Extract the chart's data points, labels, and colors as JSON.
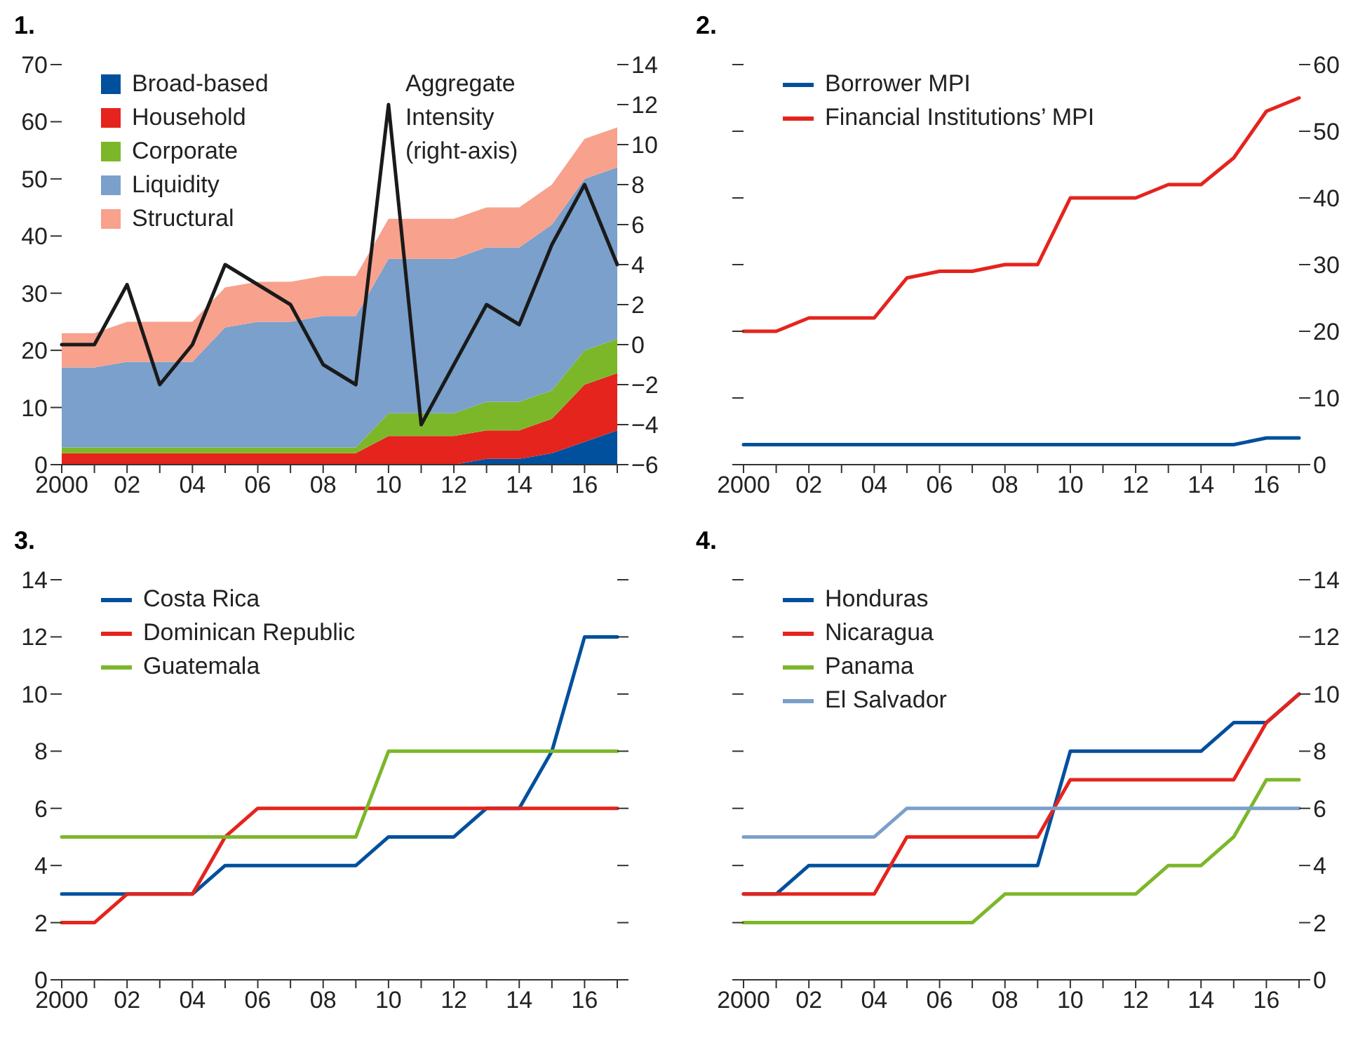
{
  "chart_data": [
    {
      "type": "area",
      "title": "1.",
      "stacked": true,
      "legend": "top left",
      "line_style": "solid",
      "categories": [
        "2000",
        null,
        "02",
        null,
        "04",
        null,
        "06",
        null,
        "08",
        null,
        "10",
        null,
        "12",
        null,
        "14",
        null,
        "16",
        null
      ],
      "series": [
        {
          "name": "Broad-based",
          "color": "#00509d",
          "values": [
            0,
            0,
            0,
            0,
            0,
            0,
            0,
            0,
            0,
            0,
            0,
            0,
            0,
            1,
            1,
            2,
            4,
            6
          ]
        },
        {
          "name": "Household",
          "color": "#e4241d",
          "values": [
            2,
            2,
            2,
            2,
            2,
            2,
            2,
            2,
            2,
            2,
            5,
            5,
            5,
            5,
            5,
            6,
            10,
            10
          ]
        },
        {
          "name": "Corporate",
          "color": "#7cb72a",
          "values": [
            1,
            1,
            1,
            1,
            1,
            1,
            1,
            1,
            1,
            1,
            4,
            4,
            4,
            5,
            5,
            5,
            6,
            6
          ]
        },
        {
          "name": "Liquidity",
          "color": "#7aa0cb",
          "values": [
            14,
            14,
            15,
            15,
            15,
            21,
            22,
            22,
            23,
            23,
            27,
            27,
            27,
            27,
            27,
            29,
            30,
            30
          ]
        },
        {
          "name": "Structural",
          "color": "#f8a18c",
          "values": [
            6,
            6,
            7,
            7,
            7,
            7,
            7,
            7,
            7,
            7,
            7,
            7,
            7,
            7,
            7,
            7,
            7,
            7
          ]
        },
        {
          "name": "Aggregate Intensity (right-axis)",
          "type": "line",
          "axis": "y2",
          "color": "#1a1a1a",
          "values": [
            0,
            0,
            3,
            -2,
            0,
            4,
            3,
            2,
            -1,
            -2,
            12,
            -4,
            -1,
            2,
            1,
            5,
            8,
            4
          ]
        }
      ],
      "ylim": [
        0,
        70
      ],
      "yticks": [
        0,
        10,
        20,
        30,
        40,
        50,
        60,
        70
      ],
      "y2lim": [
        -6,
        14
      ],
      "y2ticks": [
        -6,
        -4,
        -2,
        0,
        2,
        4,
        6,
        8,
        10,
        12,
        14
      ]
    },
    {
      "type": "line",
      "title": "2.",
      "legend": "top left",
      "line_style": "solid",
      "categories": [
        "2000",
        null,
        "02",
        null,
        "04",
        null,
        "06",
        null,
        "08",
        null,
        "10",
        null,
        "12",
        null,
        "14",
        null,
        "16",
        null
      ],
      "series": [
        {
          "name": "Borrower MPI",
          "color": "#00509d",
          "axis": "y2",
          "values": [
            3,
            3,
            3,
            3,
            3,
            3,
            3,
            3,
            3,
            3,
            3,
            3,
            3,
            3,
            3,
            3,
            4,
            4
          ]
        },
        {
          "name": "Financial Institutions’ MPI",
          "color": "#e4241d",
          "axis": "y2",
          "values": [
            20,
            20,
            22,
            22,
            22,
            28,
            29,
            29,
            30,
            30,
            40,
            40,
            40,
            42,
            42,
            46,
            53,
            55
          ]
        }
      ],
      "y2lim": [
        0,
        60
      ],
      "y2ticks": [
        0,
        10,
        20,
        30,
        40,
        50,
        60
      ]
    },
    {
      "type": "line",
      "title": "3.",
      "legend": "top left",
      "line_style": "solid",
      "categories": [
        "2000",
        null,
        "02",
        null,
        "04",
        null,
        "06",
        null,
        "08",
        null,
        "10",
        null,
        "12",
        null,
        "14",
        null,
        "16",
        null
      ],
      "series": [
        {
          "name": "Costa Rica",
          "color": "#00509d",
          "values": [
            3,
            3,
            3,
            3,
            3,
            4,
            4,
            4,
            4,
            4,
            5,
            5,
            5,
            6,
            6,
            8,
            12,
            12
          ]
        },
        {
          "name": "Dominican Republic",
          "color": "#e4241d",
          "values": [
            2,
            2,
            3,
            3,
            3,
            5,
            6,
            6,
            6,
            6,
            6,
            6,
            6,
            6,
            6,
            6,
            6,
            6
          ]
        },
        {
          "name": "Guatemala",
          "color": "#7cb72a",
          "values": [
            5,
            5,
            5,
            5,
            5,
            5,
            5,
            5,
            5,
            5,
            8,
            8,
            8,
            8,
            8,
            8,
            8,
            8
          ]
        }
      ],
      "ylim": [
        0,
        14
      ],
      "yticks": [
        0,
        2,
        4,
        6,
        8,
        10,
        12,
        14
      ]
    },
    {
      "type": "line",
      "title": "4.",
      "legend": "top left",
      "line_style": "solid",
      "categories": [
        "2000",
        null,
        "02",
        null,
        "04",
        null,
        "06",
        null,
        "08",
        null,
        "10",
        null,
        "12",
        null,
        "14",
        null,
        "16",
        null
      ],
      "series": [
        {
          "name": "Honduras",
          "color": "#00509d",
          "axis": "y2",
          "values": [
            3,
            3,
            4,
            4,
            4,
            4,
            4,
            4,
            4,
            4,
            8,
            8,
            8,
            8,
            8,
            9,
            9,
            10
          ]
        },
        {
          "name": "Nicaragua",
          "color": "#e4241d",
          "axis": "y2",
          "values": [
            3,
            3,
            3,
            3,
            3,
            5,
            5,
            5,
            5,
            5,
            7,
            7,
            7,
            7,
            7,
            7,
            9,
            10
          ]
        },
        {
          "name": "Panama",
          "color": "#7cb72a",
          "axis": "y2",
          "values": [
            2,
            2,
            2,
            2,
            2,
            2,
            2,
            2,
            3,
            3,
            3,
            3,
            3,
            4,
            4,
            5,
            7,
            7
          ]
        },
        {
          "name": "El Salvador",
          "color": "#7aa0cb",
          "axis": "y2",
          "values": [
            5,
            5,
            5,
            5,
            5,
            6,
            6,
            6,
            6,
            6,
            6,
            6,
            6,
            6,
            6,
            6,
            6,
            6
          ]
        }
      ],
      "y2lim": [
        0,
        14
      ],
      "y2ticks": [
        0,
        2,
        4,
        6,
        8,
        10,
        12,
        14
      ]
    }
  ]
}
